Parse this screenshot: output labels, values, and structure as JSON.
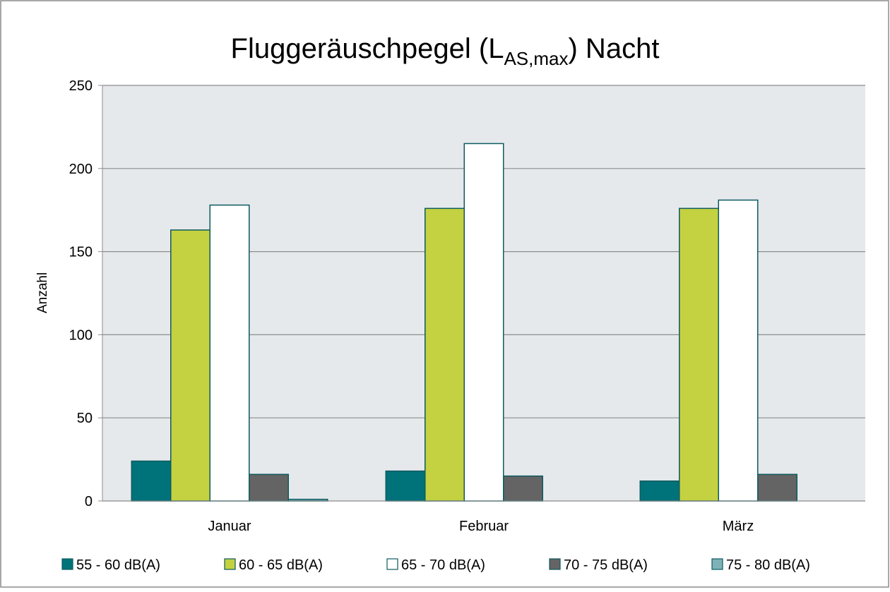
{
  "chart_data": {
    "type": "bar",
    "title": {
      "text": "Fluggeräuschpegel (L",
      "subscript": "AS,max",
      "suffix": ") Nacht"
    },
    "y_label": "Anzahl",
    "categories": [
      "Januar",
      "Februar",
      "März"
    ],
    "series": [
      {
        "name": "55 - 60 dB(A)",
        "color": "#00727a",
        "values": [
          24,
          18,
          12
        ]
      },
      {
        "name": "60 - 65 dB(A)",
        "color": "#c4d140",
        "values": [
          163,
          176,
          176
        ]
      },
      {
        "name": "65 - 70 dB(A)",
        "color": "#ffffff",
        "values": [
          178,
          215,
          181
        ]
      },
      {
        "name": "70 - 75 dB(A)",
        "color": "#646464",
        "values": [
          16,
          15,
          16
        ]
      },
      {
        "name": "75 - 80 dB(A)",
        "color": "#7fb2b8",
        "values": [
          1,
          0,
          0
        ]
      }
    ],
    "ylim": [
      0,
      250
    ],
    "yticks": [
      0,
      50,
      100,
      150,
      200,
      250
    ],
    "grid": true,
    "legend": "bottom"
  }
}
